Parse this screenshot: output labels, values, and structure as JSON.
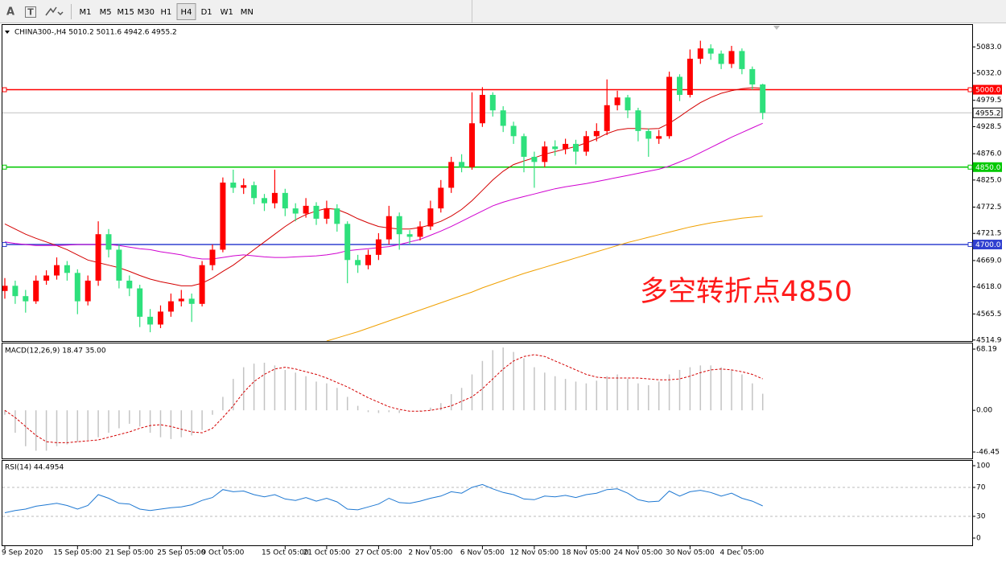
{
  "toolbar": {
    "tools": [
      "A",
      "T"
    ],
    "timeframes": [
      "M1",
      "M5",
      "M15",
      "M30",
      "H1",
      "H4",
      "D1",
      "W1",
      "MN"
    ],
    "active": "H4"
  },
  "chart_data": [
    {
      "type": "candlestick",
      "title": "CHINA300-,H4  5010.2 5011.6 4942.6 4955.2",
      "annotation": "多空转折点4850",
      "annotation_color": "#ff1a1a",
      "categories": [
        "9 Sep 2020",
        null,
        null,
        null,
        null,
        null,
        null,
        "15 Sep 05:00",
        null,
        null,
        null,
        null,
        "21 Sep 05:00",
        null,
        null,
        null,
        null,
        "25 Sep 05:00",
        null,
        null,
        null,
        "9 Oct 05:00",
        null,
        null,
        null,
        null,
        null,
        "15 Oct 05:00",
        null,
        null,
        null,
        "21 Oct 05:00",
        null,
        null,
        null,
        null,
        "27 Oct 05:00",
        null,
        null,
        null,
        null,
        "2 Nov 05:00",
        null,
        null,
        null,
        null,
        "6 Nov 05:00",
        null,
        null,
        null,
        null,
        "12 Nov 05:00",
        null,
        null,
        null,
        null,
        "18 Nov 05:00",
        null,
        null,
        null,
        null,
        "24 Nov 05:00",
        null,
        null,
        null,
        null,
        "30 Nov 05:00",
        null,
        null,
        null,
        null,
        "4 Dec 05:00",
        null,
        null
      ],
      "open": [
        4610,
        4620,
        4600,
        4590,
        4630,
        4640,
        4660,
        4645,
        4590,
        4630,
        4720,
        4690,
        4630,
        4615,
        4560,
        4545,
        4570,
        4590,
        4595,
        4585,
        4660,
        4690,
        4820,
        4810,
        4815,
        4790,
        4780,
        4800,
        4770,
        4760,
        4775,
        4750,
        4770,
        4740,
        4670,
        4660,
        4680,
        4710,
        4755,
        4720,
        4715,
        4735,
        4770,
        4810,
        4860,
        4850,
        4935,
        4990,
        4960,
        4930,
        4910,
        4870,
        4860,
        4890,
        4885,
        4895,
        4880,
        4910,
        4920,
        4970,
        4985,
        4960,
        4920,
        4905,
        4910,
        5025,
        4990,
        5060,
        5080,
        5070,
        5050,
        5075,
        5040,
        5010.2
      ],
      "high": [
        4635,
        4630,
        4612,
        4640,
        4650,
        4675,
        4668,
        4652,
        4640,
        4745,
        4730,
        4700,
        4640,
        4622,
        4575,
        4582,
        4605,
        4612,
        4605,
        4668,
        4700,
        4830,
        4845,
        4828,
        4822,
        4798,
        4845,
        4808,
        4780,
        4790,
        4782,
        4785,
        4778,
        4745,
        4680,
        4690,
        4722,
        4775,
        4762,
        4728,
        4745,
        4785,
        4825,
        4870,
        4875,
        4995,
        5005,
        4995,
        4968,
        4938,
        4915,
        4880,
        4900,
        4902,
        4905,
        4903,
        4920,
        4935,
        5020,
        4998,
        4990,
        4965,
        4925,
        4922,
        5035,
        5030,
        5078,
        5095,
        5088,
        5076,
        5085,
        5080,
        5045,
        5011.6
      ],
      "low": [
        4595,
        4585,
        4568,
        4585,
        4622,
        4632,
        4630,
        4565,
        4582,
        4620,
        4675,
        4615,
        4600,
        4540,
        4530,
        4538,
        4560,
        4580,
        4550,
        4580,
        4650,
        4685,
        4800,
        4798,
        4778,
        4765,
        4770,
        4755,
        4745,
        4752,
        4738,
        4740,
        4725,
        4625,
        4645,
        4652,
        4670,
        4700,
        4690,
        4700,
        4708,
        4728,
        4762,
        4800,
        4840,
        4845,
        4928,
        4948,
        4918,
        4895,
        4840,
        4810,
        4850,
        4872,
        4875,
        4855,
        4872,
        4900,
        4912,
        4960,
        4945,
        4900,
        4870,
        4895,
        4905,
        4978,
        4985,
        5050,
        5058,
        5040,
        5042,
        5030,
        5000,
        4942.6
      ],
      "close": [
        4620,
        4600,
        4590,
        4630,
        4640,
        4660,
        4645,
        4590,
        4630,
        4720,
        4690,
        4630,
        4615,
        4560,
        4545,
        4570,
        4590,
        4595,
        4585,
        4660,
        4690,
        4820,
        4810,
        4815,
        4790,
        4780,
        4800,
        4770,
        4760,
        4775,
        4750,
        4770,
        4740,
        4670,
        4660,
        4680,
        4710,
        4755,
        4720,
        4715,
        4735,
        4770,
        4810,
        4860,
        4850,
        4935,
        4990,
        4960,
        4930,
        4910,
        4870,
        4860,
        4890,
        4885,
        4895,
        4880,
        4910,
        4920,
        4970,
        4985,
        4960,
        4920,
        4905,
        4910,
        5025,
        4990,
        5060,
        5080,
        5070,
        5050,
        5075,
        5040,
        5010.2,
        4955.2
      ],
      "up_color": "#ff0000",
      "down_color": "#2ee07c",
      "series": [
        {
          "color": "#d40000",
          "values": [
            4740,
            4730,
            4720,
            4712,
            4705,
            4698,
            4690,
            4680,
            4670,
            4665,
            4660,
            4655,
            4648,
            4640,
            4633,
            4628,
            4624,
            4620,
            4620,
            4625,
            4635,
            4648,
            4660,
            4675,
            4690,
            4705,
            4720,
            4735,
            4748,
            4758,
            4765,
            4770,
            4768,
            4760,
            4750,
            4742,
            4735,
            4732,
            4730,
            4730,
            4733,
            4738,
            4745,
            4755,
            4768,
            4785,
            4805,
            4825,
            4842,
            4855,
            4862,
            4868,
            4875,
            4880,
            4885,
            4890,
            4897,
            4905,
            4915,
            4922,
            4925,
            4925,
            4924,
            4925,
            4935,
            4948,
            4962,
            4975,
            4985,
            4993,
            4998,
            5002,
            5004,
            5003
          ]
        },
        {
          "color": "#d000d0",
          "values": [
            4705,
            4702,
            4700,
            4698,
            4698,
            4698,
            4699,
            4700,
            4700,
            4700,
            4700,
            4698,
            4695,
            4692,
            4690,
            4686,
            4683,
            4680,
            4675,
            4672,
            4672,
            4675,
            4678,
            4680,
            4678,
            4676,
            4675,
            4675,
            4676,
            4677,
            4678,
            4680,
            4683,
            4688,
            4690,
            4692,
            4694,
            4696,
            4700,
            4705,
            4710,
            4718,
            4726,
            4735,
            4745,
            4755,
            4765,
            4775,
            4782,
            4788,
            4793,
            4798,
            4803,
            4808,
            4812,
            4815,
            4818,
            4822,
            4826,
            4830,
            4834,
            4838,
            4842,
            4846,
            4852,
            4860,
            4868,
            4878,
            4888,
            4898,
            4908,
            4917,
            4926,
            4935
          ]
        },
        {
          "color": "#f0a000",
          "values": [
            null,
            null,
            null,
            null,
            null,
            null,
            null,
            null,
            null,
            null,
            null,
            null,
            null,
            null,
            null,
            null,
            null,
            null,
            null,
            null,
            null,
            null,
            null,
            null,
            null,
            null,
            null,
            null,
            null,
            null,
            null,
            4513,
            4519,
            4525,
            4531,
            4538,
            4545,
            4552,
            4559,
            4566,
            4573,
            4580,
            4587,
            4594,
            4601,
            4608,
            4616,
            4623,
            4630,
            4637,
            4644,
            4650,
            4656,
            4662,
            4668,
            4674,
            4680,
            4686,
            4692,
            4698,
            4704,
            4709,
            4714,
            4719,
            4724,
            4729,
            4734,
            4738,
            4742,
            4745,
            4748,
            4751,
            4753,
            4755
          ]
        }
      ],
      "levels": [
        {
          "value": 5000,
          "label": "5000.0",
          "color": "#ff0000"
        },
        {
          "value": 4850,
          "label": "4850.0",
          "color": "#00c800"
        },
        {
          "value": 4700,
          "label": "4700.0",
          "color": "#3040d0"
        }
      ],
      "last": 4955.2,
      "ylim": [
        4513,
        5124
      ],
      "yticks": [
        {
          "value": 5083,
          "label": "5083.0"
        },
        {
          "value": 5032,
          "label": "5032.0"
        },
        4979.5,
        4928.5,
        {
          "value": 4876,
          "label": "4876.0"
        },
        {
          "value": 4825,
          "label": "4825.0"
        },
        4772.5,
        4721.5,
        {
          "value": 4669,
          "label": "4669.0"
        },
        {
          "value": 4618,
          "label": "4618.0"
        },
        4565.5,
        4514.9
      ],
      "grid": false
    },
    {
      "type": "macd",
      "title": "MACD(12,26,9) 18.47 35.00",
      "values": [
        -5,
        -25,
        -40,
        -45,
        -45,
        -40,
        -38,
        -35,
        -33,
        -30,
        -25,
        -20,
        -15,
        -18,
        -25,
        -30,
        -32,
        -30,
        -28,
        -22,
        -5,
        15,
        35,
        48,
        52,
        53,
        50,
        45,
        42,
        38,
        32,
        30,
        25,
        15,
        5,
        -2,
        -3,
        -2,
        -3,
        0,
        -1,
        3,
        8,
        18,
        25,
        40,
        55,
        67,
        70,
        65,
        58,
        48,
        42,
        38,
        35,
        32,
        30,
        33,
        38,
        40,
        35,
        30,
        28,
        32,
        40,
        45,
        48,
        50,
        50,
        48,
        45,
        40,
        30,
        18.47
      ],
      "color": "#c4c4c4",
      "signal": {
        "color": "#d40000",
        "values": [
          0,
          -8,
          -18,
          -28,
          -35,
          -36,
          -36,
          -35,
          -34,
          -33,
          -30,
          -27,
          -24,
          -20,
          -17,
          -16,
          -18,
          -21,
          -24,
          -25,
          -20,
          -8,
          5,
          20,
          32,
          40,
          46,
          48,
          46,
          43,
          40,
          36,
          31,
          26,
          20,
          14,
          9,
          4,
          1,
          -1,
          -1,
          0,
          2,
          5,
          10,
          15,
          24,
          35,
          46,
          55,
          60,
          62,
          60,
          55,
          50,
          45,
          40,
          37,
          36,
          36,
          36,
          36,
          35,
          34,
          34,
          35,
          38,
          42,
          45,
          46,
          45,
          43,
          40,
          35
        ]
      },
      "ylim": [
        -53.6,
        73.6
      ],
      "yticks": [
        68.19,
        {
          "value": 0,
          "label": "0.00"
        },
        -46.45
      ]
    },
    {
      "type": "line",
      "title": "RSI(14) 44.4954",
      "series": [
        {
          "color": "#1e78d2",
          "values": [
            35,
            38,
            40,
            44,
            46,
            48,
            45,
            40,
            45,
            60,
            55,
            48,
            47,
            40,
            38,
            40,
            42,
            43,
            46,
            52,
            56,
            67,
            64,
            65,
            60,
            57,
            60,
            54,
            52,
            56,
            51,
            55,
            50,
            40,
            39,
            43,
            47,
            55,
            49,
            48,
            51,
            55,
            58,
            64,
            62,
            70,
            74,
            68,
            63,
            60,
            54,
            53,
            58,
            57,
            59,
            56,
            60,
            62,
            67,
            68,
            62,
            53,
            50,
            51,
            65,
            58,
            64,
            66,
            63,
            58,
            62,
            55,
            51,
            44.4954
          ]
        }
      ],
      "levels": [
        70,
        30
      ],
      "ylim": [
        -10,
        106.7
      ],
      "yticks": [
        100,
        70,
        30,
        0
      ]
    }
  ]
}
